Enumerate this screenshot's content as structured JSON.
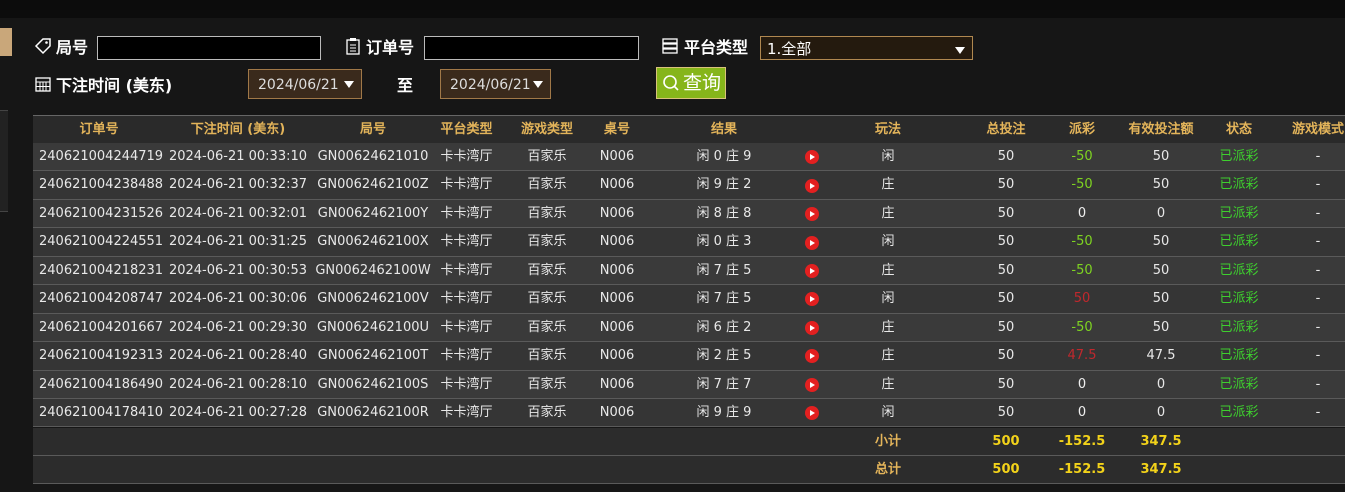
{
  "form": {
    "round_label": "局号",
    "order_label": "订单号",
    "platform_label": "平台类型",
    "platform_value": "1.全部",
    "time_label": "下注时间 (美东)",
    "date_from": "2024/06/21",
    "to_label": "至",
    "date_to": "2024/06/21",
    "query_button": "查询"
  },
  "table": {
    "headers": [
      "订单号",
      "下注时间 (美东)",
      "局号",
      "平台类型",
      "游戏类型",
      "桌号",
      "结果",
      "玩法",
      "总投注",
      "派彩",
      "有效投注额",
      "状态",
      "游戏模式"
    ],
    "rows": [
      [
        "240621004244719",
        "2024-06-21 00:33:10",
        "GN00624621010",
        "卡卡湾厅",
        "百家乐",
        "N006",
        "闲 0 庄 9",
        "闲",
        50,
        -50,
        50,
        "已派彩",
        "-"
      ],
      [
        "240621004238488",
        "2024-06-21 00:32:37",
        "GN0062462100Z",
        "卡卡湾厅",
        "百家乐",
        "N006",
        "闲 9 庄 2",
        "庄",
        50,
        -50,
        50,
        "已派彩",
        "-"
      ],
      [
        "240621004231526",
        "2024-06-21 00:32:01",
        "GN0062462100Y",
        "卡卡湾厅",
        "百家乐",
        "N006",
        "闲 8 庄 8",
        "庄",
        50,
        0,
        0,
        "已派彩",
        "-"
      ],
      [
        "240621004224551",
        "2024-06-21 00:31:25",
        "GN0062462100X",
        "卡卡湾厅",
        "百家乐",
        "N006",
        "闲 0 庄 3",
        "闲",
        50,
        -50,
        50,
        "已派彩",
        "-"
      ],
      [
        "240621004218231",
        "2024-06-21 00:30:53",
        "GN0062462100W",
        "卡卡湾厅",
        "百家乐",
        "N006",
        "闲 7 庄 5",
        "庄",
        50,
        -50,
        50,
        "已派彩",
        "-"
      ],
      [
        "240621004208747",
        "2024-06-21 00:30:06",
        "GN0062462100V",
        "卡卡湾厅",
        "百家乐",
        "N006",
        "闲 7 庄 5",
        "闲",
        50,
        50,
        50,
        "已派彩",
        "-"
      ],
      [
        "240621004201667",
        "2024-06-21 00:29:30",
        "GN0062462100U",
        "卡卡湾厅",
        "百家乐",
        "N006",
        "闲 6 庄 2",
        "庄",
        50,
        -50,
        50,
        "已派彩",
        "-"
      ],
      [
        "240621004192313",
        "2024-06-21 00:28:40",
        "GN0062462100T",
        "卡卡湾厅",
        "百家乐",
        "N006",
        "闲 2 庄 5",
        "庄",
        50,
        47.5,
        47.5,
        "已派彩",
        "-"
      ],
      [
        "240621004186490",
        "2024-06-21 00:28:10",
        "GN0062462100S",
        "卡卡湾厅",
        "百家乐",
        "N006",
        "闲 7 庄 7",
        "庄",
        50,
        0,
        0,
        "已派彩",
        "-"
      ],
      [
        "240621004178410",
        "2024-06-21 00:27:28",
        "GN0062462100R",
        "卡卡湾厅",
        "百家乐",
        "N006",
        "闲 9 庄 9",
        "闲",
        50,
        0,
        0,
        "已派彩",
        "-"
      ]
    ],
    "subtotal": {
      "label": "小计",
      "bet": 500,
      "payout": -152.5,
      "valid": 347.5
    },
    "total": {
      "label": "总计",
      "bet": 500,
      "payout": -152.5,
      "valid": 347.5
    }
  }
}
